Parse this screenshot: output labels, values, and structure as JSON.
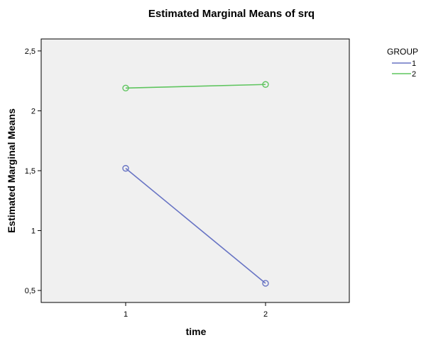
{
  "chart_data": {
    "type": "line",
    "title": "Estimated Marginal Means of srq",
    "xlabel": "time",
    "ylabel": "Estimated Marginal Means",
    "categories": [
      "1",
      "2"
    ],
    "yticks": [
      "0,5",
      "1",
      "1,5",
      "2",
      "2,5"
    ],
    "ytick_values": [
      0.5,
      1,
      1.5,
      2,
      2.5
    ],
    "ylim": [
      0.4,
      2.6
    ],
    "grid": false,
    "legend": {
      "title": "GROUP",
      "position": "top-right"
    },
    "series": [
      {
        "name": "1",
        "values": [
          1.52,
          0.56
        ],
        "color": "#6874c4"
      },
      {
        "name": "2",
        "values": [
          2.19,
          2.22
        ],
        "color": "#5fc55f"
      }
    ],
    "plot_background": "#f0f0f0"
  }
}
